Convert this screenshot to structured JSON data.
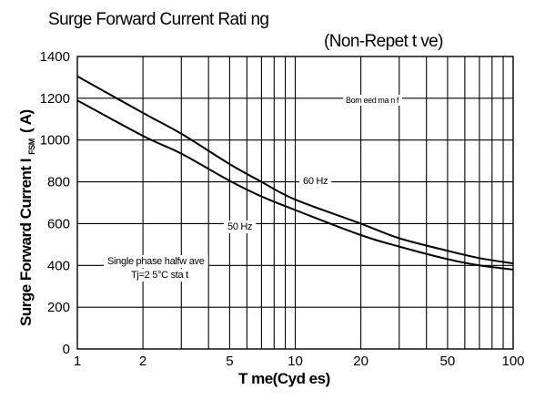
{
  "chart_data": {
    "type": "line",
    "title": "Surge Forward Current Rati    ng",
    "subtitle": "(Non-Repet    t    ve)",
    "xlabel": "T   me(Cyd   es)",
    "ylabel": "Surge Forward Current I",
    "ylabel_sub": "FSM",
    "ylabel_unit": "( A)",
    "x_scale": "log",
    "xlim": [
      1,
      100
    ],
    "ylim": [
      0,
      1400
    ],
    "grid": true,
    "x_ticks": [
      1,
      2,
      5,
      10,
      20,
      50,
      100
    ],
    "x_tick_labels": [
      "1",
      "2",
      "5",
      "10",
      "20",
      "50",
      "100"
    ],
    "y_ticks": [
      0,
      200,
      400,
      600,
      800,
      1000,
      1200,
      1400
    ],
    "y_tick_labels": [
      "0",
      "200",
      "400",
      "600",
      "800",
      "1000",
      "1200",
      "1400"
    ],
    "series": [
      {
        "name": "60 Hz",
        "x": [
          1,
          2,
          3,
          5,
          7,
          10,
          20,
          30,
          50,
          70,
          100
        ],
        "y": [
          1305,
          1130,
          1030,
          885,
          800,
          715,
          600,
          530,
          470,
          435,
          410
        ]
      },
      {
        "name": "50 Hz",
        "x": [
          1,
          2,
          3,
          5,
          7,
          10,
          20,
          30,
          50,
          70,
          100
        ],
        "y": [
          1190,
          1020,
          935,
          805,
          730,
          665,
          545,
          490,
          430,
          400,
          380
        ]
      }
    ],
    "annotations": {
      "bottom_right": "Born   eed  ma n  f",
      "hz60": "60 Hz",
      "hz50": "50 Hz",
      "condition_line1": "Single phase halfw ave",
      "condition_line2": "Tj=2  5°C sta    t"
    },
    "colors": {
      "line": "#000000",
      "grid": "#000000",
      "background": "#ffffff"
    }
  }
}
